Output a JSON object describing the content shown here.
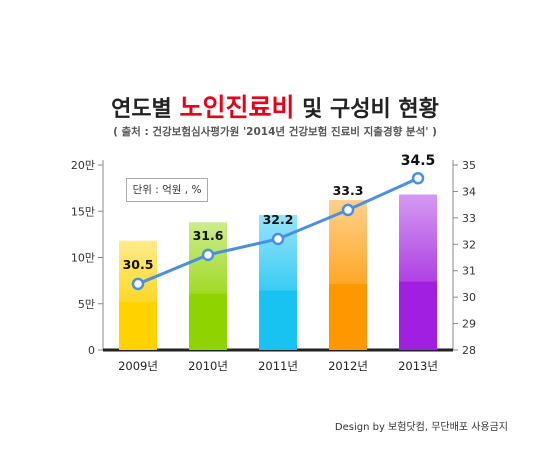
{
  "title": {
    "pre": "연도별 ",
    "accent": "노인진료비",
    "post": " 및 구성비 현황"
  },
  "subtitle": "( 출처 : 건강보험심사평가원 '2014년 건강보험 진료비 지출경향 분석' )",
  "unit_label": "단위 : 억원 , %",
  "credit": "Design by 보험닷컴,  무단배포 사용금지",
  "colors": {
    "line": "#4a90e2",
    "axis": "#222222",
    "bars": [
      "#ffd200",
      "#8fd400",
      "#18c3f2",
      "#ff9800",
      "#a11fe0"
    ]
  },
  "chart_data": {
    "type": "bar",
    "categories": [
      "2009년",
      "2010년",
      "2011년",
      "2012년",
      "2013년"
    ],
    "series": [
      {
        "values": [
          11.8,
          13.8,
          14.6,
          16.2,
          16.8
        ],
        "axis": "left"
      },
      {
        "values": [
          30.5,
          31.6,
          32.2,
          33.3,
          34.5
        ],
        "axis": "right",
        "type": "line"
      }
    ],
    "left_ticks": [
      "0",
      "5만",
      "10만",
      "15만",
      "20만"
    ],
    "right_ticks": [
      "28",
      "29",
      "30",
      "31",
      "32",
      "33",
      "34",
      "35"
    ],
    "ylim_left": [
      0,
      20
    ],
    "ylim_right": [
      28,
      35
    ],
    "line_labels": [
      "30.5",
      "31.6",
      "32.2",
      "33.3",
      "34.5"
    ],
    "grid": false,
    "legend": "none"
  }
}
